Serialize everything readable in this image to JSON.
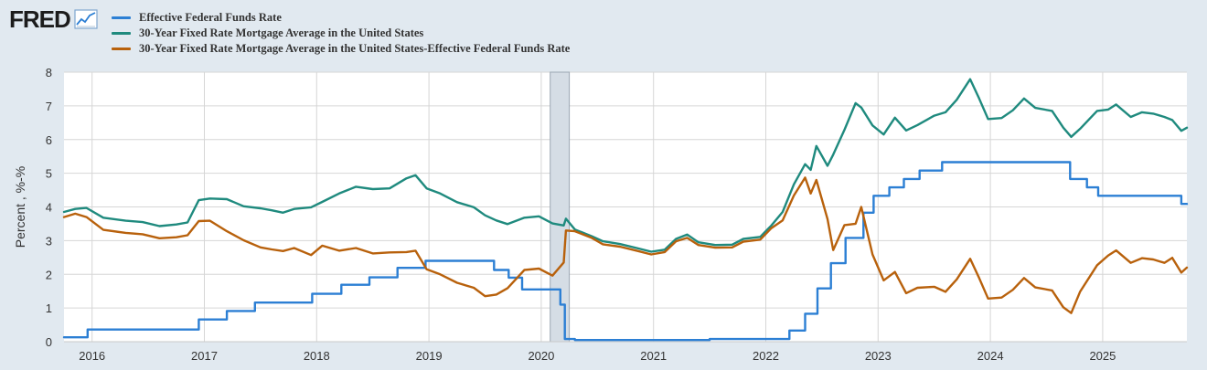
{
  "brand": {
    "logo_text": "FRED",
    "logo_icon": "trend-line-icon"
  },
  "colors": {
    "fed_funds": "#2c7fd4",
    "mortgage": "#1f8a7e",
    "spread": "#b8610c",
    "recession": "#d5dde5",
    "grid": "#d6d6d6",
    "plot_bg": "#ffffff",
    "page_bg": "#e1e9f0"
  },
  "chart_data": {
    "type": "line",
    "title": "",
    "xlabel": "",
    "ylabel": "Percent , %-%",
    "xlim": [
      2015.75,
      2025.75
    ],
    "ylim": [
      0,
      8
    ],
    "yticks": [
      "0",
      "1",
      "2",
      "3",
      "4",
      "5",
      "6",
      "7",
      "8"
    ],
    "xticks": [
      "2016",
      "2017",
      "2018",
      "2019",
      "2020",
      "2021",
      "2022",
      "2023",
      "2024",
      "2025"
    ],
    "grid": true,
    "legend_position": "top",
    "recession_shading": [
      [
        2020.08,
        2020.25
      ]
    ],
    "series": [
      {
        "name": "Effective Federal Funds Rate",
        "step": true,
        "points": [
          [
            2015.75,
            0.13
          ],
          [
            2015.96,
            0.36
          ],
          [
            2016.95,
            0.66
          ],
          [
            2017.2,
            0.91
          ],
          [
            2017.45,
            1.16
          ],
          [
            2017.96,
            1.42
          ],
          [
            2018.22,
            1.69
          ],
          [
            2018.47,
            1.91
          ],
          [
            2018.72,
            2.19
          ],
          [
            2018.97,
            2.4
          ],
          [
            2019.58,
            2.13
          ],
          [
            2019.71,
            1.9
          ],
          [
            2019.83,
            1.55
          ],
          [
            2020.17,
            1.1
          ],
          [
            2020.21,
            0.08
          ],
          [
            2020.3,
            0.05
          ],
          [
            2021.5,
            0.08
          ],
          [
            2022.21,
            0.33
          ],
          [
            2022.35,
            0.83
          ],
          [
            2022.46,
            1.58
          ],
          [
            2022.58,
            2.33
          ],
          [
            2022.71,
            3.08
          ],
          [
            2022.87,
            3.83
          ],
          [
            2022.96,
            4.33
          ],
          [
            2023.1,
            4.58
          ],
          [
            2023.23,
            4.83
          ],
          [
            2023.37,
            5.08
          ],
          [
            2023.57,
            5.33
          ],
          [
            2024.71,
            4.83
          ],
          [
            2024.86,
            4.58
          ],
          [
            2024.96,
            4.33
          ],
          [
            2025.7,
            4.09
          ],
          [
            2025.75,
            4.09
          ]
        ]
      },
      {
        "name": "30-Year Fixed Rate Mortgage Average in the United States",
        "step": false,
        "points": [
          [
            2015.75,
            3.85
          ],
          [
            2015.85,
            3.94
          ],
          [
            2015.95,
            3.97
          ],
          [
            2016.1,
            3.68
          ],
          [
            2016.3,
            3.59
          ],
          [
            2016.45,
            3.55
          ],
          [
            2016.6,
            3.43
          ],
          [
            2016.75,
            3.48
          ],
          [
            2016.85,
            3.54
          ],
          [
            2016.95,
            4.2
          ],
          [
            2017.05,
            4.25
          ],
          [
            2017.2,
            4.23
          ],
          [
            2017.35,
            4.02
          ],
          [
            2017.5,
            3.96
          ],
          [
            2017.6,
            3.9
          ],
          [
            2017.7,
            3.83
          ],
          [
            2017.8,
            3.94
          ],
          [
            2017.95,
            3.99
          ],
          [
            2018.05,
            4.15
          ],
          [
            2018.2,
            4.4
          ],
          [
            2018.35,
            4.6
          ],
          [
            2018.5,
            4.53
          ],
          [
            2018.65,
            4.55
          ],
          [
            2018.8,
            4.85
          ],
          [
            2018.88,
            4.94
          ],
          [
            2018.98,
            4.55
          ],
          [
            2019.1,
            4.4
          ],
          [
            2019.25,
            4.14
          ],
          [
            2019.4,
            3.99
          ],
          [
            2019.5,
            3.75
          ],
          [
            2019.6,
            3.6
          ],
          [
            2019.7,
            3.49
          ],
          [
            2019.85,
            3.68
          ],
          [
            2019.98,
            3.72
          ],
          [
            2020.1,
            3.51
          ],
          [
            2020.2,
            3.45
          ],
          [
            2020.22,
            3.65
          ],
          [
            2020.3,
            3.33
          ],
          [
            2020.45,
            3.13
          ],
          [
            2020.55,
            2.98
          ],
          [
            2020.7,
            2.9
          ],
          [
            2020.85,
            2.78
          ],
          [
            2020.98,
            2.67
          ],
          [
            2021.1,
            2.73
          ],
          [
            2021.2,
            3.05
          ],
          [
            2021.3,
            3.18
          ],
          [
            2021.4,
            2.95
          ],
          [
            2021.55,
            2.87
          ],
          [
            2021.7,
            2.88
          ],
          [
            2021.8,
            3.05
          ],
          [
            2021.95,
            3.11
          ],
          [
            2022.05,
            3.45
          ],
          [
            2022.15,
            3.85
          ],
          [
            2022.25,
            4.67
          ],
          [
            2022.35,
            5.27
          ],
          [
            2022.4,
            5.1
          ],
          [
            2022.45,
            5.81
          ],
          [
            2022.55,
            5.22
          ],
          [
            2022.6,
            5.55
          ],
          [
            2022.7,
            6.29
          ],
          [
            2022.8,
            7.08
          ],
          [
            2022.85,
            6.95
          ],
          [
            2022.95,
            6.42
          ],
          [
            2023.05,
            6.15
          ],
          [
            2023.15,
            6.65
          ],
          [
            2023.25,
            6.27
          ],
          [
            2023.35,
            6.43
          ],
          [
            2023.5,
            6.71
          ],
          [
            2023.6,
            6.81
          ],
          [
            2023.7,
            7.18
          ],
          [
            2023.82,
            7.79
          ],
          [
            2023.9,
            7.22
          ],
          [
            2023.98,
            6.61
          ],
          [
            2024.1,
            6.64
          ],
          [
            2024.2,
            6.87
          ],
          [
            2024.3,
            7.22
          ],
          [
            2024.4,
            6.94
          ],
          [
            2024.55,
            6.85
          ],
          [
            2024.65,
            6.35
          ],
          [
            2024.72,
            6.08
          ],
          [
            2024.8,
            6.32
          ],
          [
            2024.95,
            6.85
          ],
          [
            2025.05,
            6.89
          ],
          [
            2025.12,
            7.04
          ],
          [
            2025.25,
            6.67
          ],
          [
            2025.35,
            6.81
          ],
          [
            2025.45,
            6.77
          ],
          [
            2025.55,
            6.67
          ],
          [
            2025.62,
            6.58
          ],
          [
            2025.7,
            6.26
          ],
          [
            2025.75,
            6.35
          ]
        ]
      },
      {
        "name": "30-Year Fixed Rate Mortgage Average in the United States-Effective Federal Funds Rate",
        "step": false,
        "points": [
          [
            2015.75,
            3.7
          ],
          [
            2015.85,
            3.8
          ],
          [
            2015.95,
            3.7
          ],
          [
            2016.1,
            3.32
          ],
          [
            2016.3,
            3.23
          ],
          [
            2016.45,
            3.19
          ],
          [
            2016.6,
            3.07
          ],
          [
            2016.75,
            3.1
          ],
          [
            2016.85,
            3.16
          ],
          [
            2016.95,
            3.58
          ],
          [
            2017.05,
            3.59
          ],
          [
            2017.2,
            3.28
          ],
          [
            2017.35,
            3.01
          ],
          [
            2017.5,
            2.8
          ],
          [
            2017.6,
            2.74
          ],
          [
            2017.7,
            2.69
          ],
          [
            2017.8,
            2.78
          ],
          [
            2017.95,
            2.57
          ],
          [
            2018.05,
            2.85
          ],
          [
            2018.2,
            2.7
          ],
          [
            2018.35,
            2.78
          ],
          [
            2018.5,
            2.62
          ],
          [
            2018.65,
            2.65
          ],
          [
            2018.8,
            2.66
          ],
          [
            2018.88,
            2.7
          ],
          [
            2018.98,
            2.15
          ],
          [
            2019.1,
            2.0
          ],
          [
            2019.25,
            1.75
          ],
          [
            2019.4,
            1.6
          ],
          [
            2019.5,
            1.35
          ],
          [
            2019.6,
            1.4
          ],
          [
            2019.7,
            1.59
          ],
          [
            2019.85,
            2.13
          ],
          [
            2019.98,
            2.17
          ],
          [
            2020.1,
            1.96
          ],
          [
            2020.2,
            2.35
          ],
          [
            2020.22,
            3.3
          ],
          [
            2020.3,
            3.28
          ],
          [
            2020.45,
            3.08
          ],
          [
            2020.55,
            2.89
          ],
          [
            2020.7,
            2.82
          ],
          [
            2020.85,
            2.7
          ],
          [
            2020.98,
            2.59
          ],
          [
            2021.1,
            2.66
          ],
          [
            2021.2,
            2.98
          ],
          [
            2021.3,
            3.08
          ],
          [
            2021.4,
            2.87
          ],
          [
            2021.55,
            2.79
          ],
          [
            2021.7,
            2.8
          ],
          [
            2021.8,
            2.97
          ],
          [
            2021.95,
            3.03
          ],
          [
            2022.05,
            3.37
          ],
          [
            2022.15,
            3.6
          ],
          [
            2022.25,
            4.34
          ],
          [
            2022.35,
            4.87
          ],
          [
            2022.4,
            4.4
          ],
          [
            2022.45,
            4.8
          ],
          [
            2022.55,
            3.64
          ],
          [
            2022.6,
            2.72
          ],
          [
            2022.7,
            3.46
          ],
          [
            2022.8,
            3.5
          ],
          [
            2022.85,
            4.0
          ],
          [
            2022.95,
            2.59
          ],
          [
            2023.05,
            1.82
          ],
          [
            2023.15,
            2.07
          ],
          [
            2023.25,
            1.44
          ],
          [
            2023.35,
            1.6
          ],
          [
            2023.5,
            1.63
          ],
          [
            2023.6,
            1.48
          ],
          [
            2023.7,
            1.85
          ],
          [
            2023.82,
            2.46
          ],
          [
            2023.9,
            1.89
          ],
          [
            2023.98,
            1.28
          ],
          [
            2024.1,
            1.31
          ],
          [
            2024.2,
            1.54
          ],
          [
            2024.3,
            1.89
          ],
          [
            2024.4,
            1.61
          ],
          [
            2024.55,
            1.52
          ],
          [
            2024.65,
            1.02
          ],
          [
            2024.72,
            0.85
          ],
          [
            2024.8,
            1.49
          ],
          [
            2024.95,
            2.27
          ],
          [
            2025.05,
            2.56
          ],
          [
            2025.12,
            2.71
          ],
          [
            2025.25,
            2.34
          ],
          [
            2025.35,
            2.48
          ],
          [
            2025.45,
            2.44
          ],
          [
            2025.55,
            2.34
          ],
          [
            2025.62,
            2.49
          ],
          [
            2025.7,
            2.05
          ],
          [
            2025.75,
            2.2
          ]
        ]
      }
    ]
  }
}
